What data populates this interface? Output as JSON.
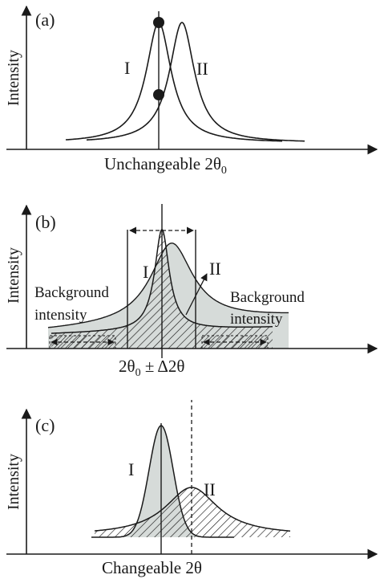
{
  "panels": [
    {
      "tag": "(a)",
      "ylabel": "Intensity",
      "xlabel_main": "Unchangeable 2θ",
      "xlabel_sub": "0",
      "curve_labels": [
        "I",
        "II"
      ]
    },
    {
      "tag": "(b)",
      "ylabel": "Intensity",
      "xlabel_main": "2θ",
      "xlabel_sub": "0",
      "xlabel_tail": " ± Δ2θ",
      "curve_labels": [
        "I",
        "II"
      ],
      "left_annotation": [
        "Background",
        "intensity"
      ],
      "right_annotation": [
        "Background",
        "intensity"
      ]
    },
    {
      "tag": "(c)",
      "ylabel": "Intensity",
      "xlabel_main": "Changeable 2θ",
      "curve_labels": [
        "I",
        "II"
      ]
    }
  ],
  "colors": {
    "ink": "#1a1a1a",
    "fill_gray": "#d6dbd9",
    "hatch": "#1a1a1a"
  }
}
